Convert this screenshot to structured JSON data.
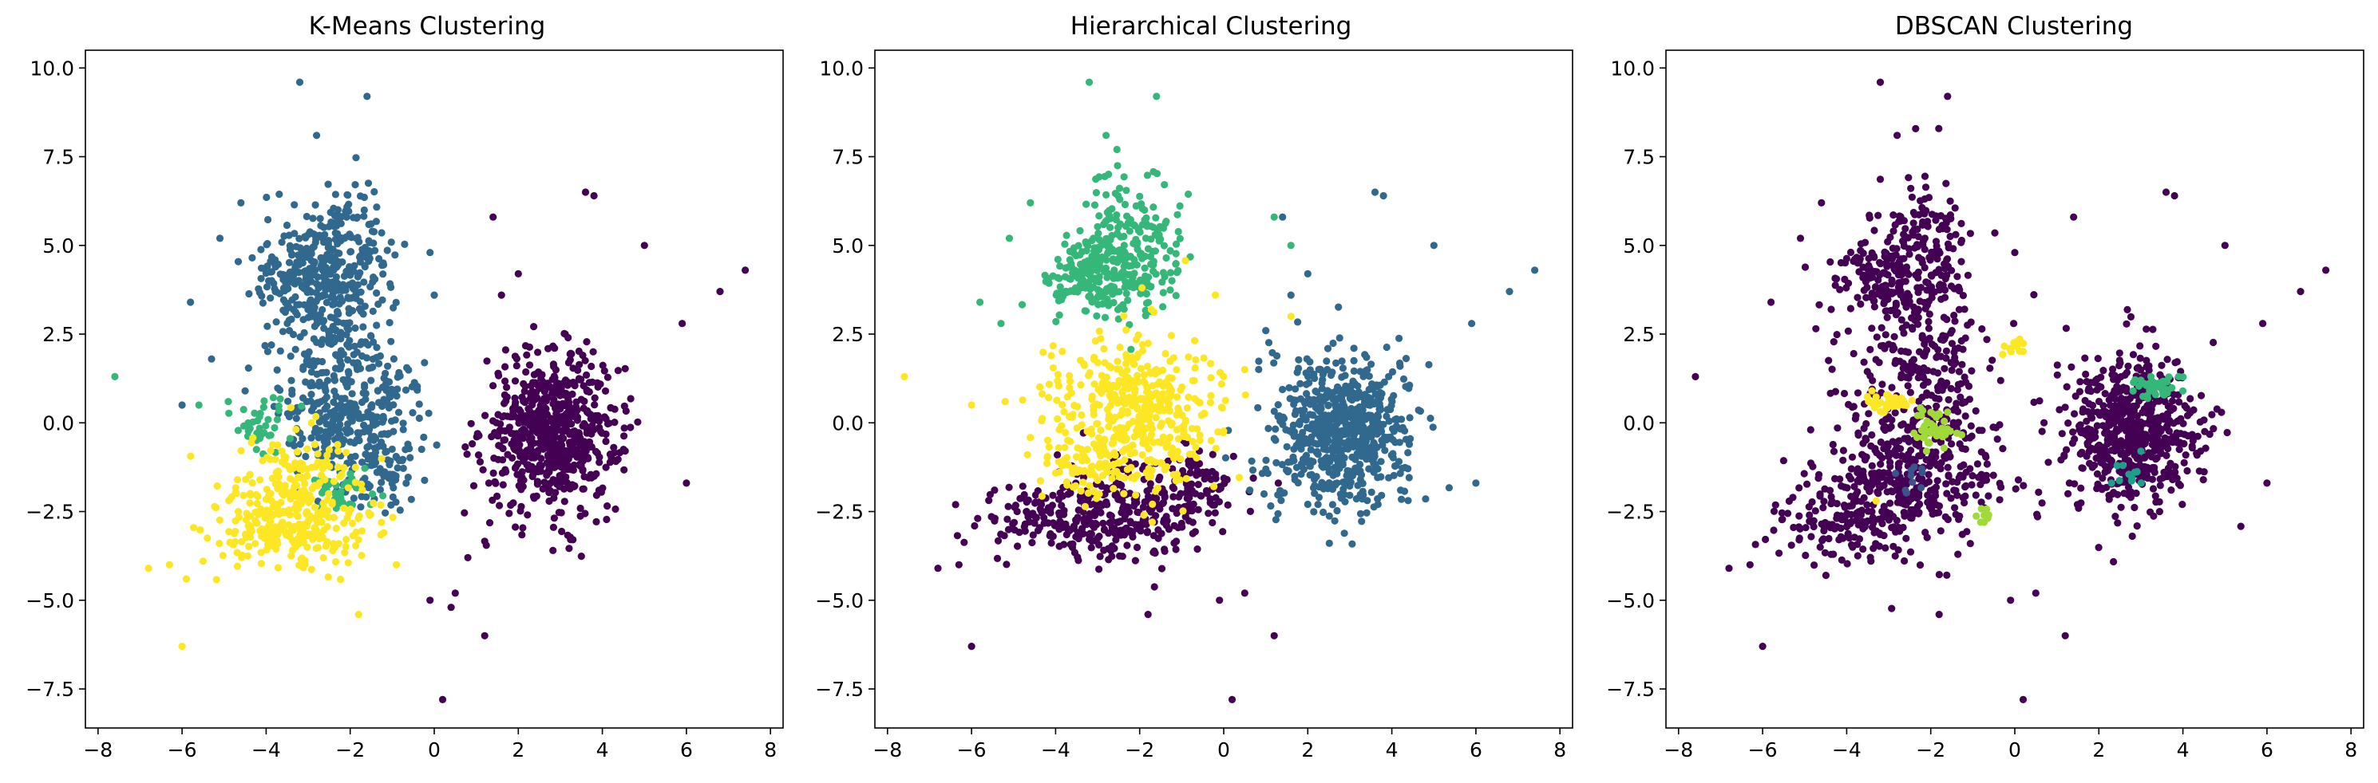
{
  "colors": {
    "viridis_0": "#440154",
    "viridis_1": "#31688e",
    "viridis_2": "#35b779",
    "viridis_3": "#fde725",
    "viridis_lime": "#a0da39",
    "viridis_teal": "#1f9e89",
    "viridis_mid": "#3b528b"
  },
  "chart_data": [
    {
      "type": "scatter",
      "title": "K-Means Clustering",
      "xlabel": "",
      "ylabel": "",
      "xlim": [
        -8.3,
        8.3
      ],
      "ylim": [
        -8.6,
        10.5
      ],
      "xticks": [
        -8,
        -6,
        -4,
        -2,
        0,
        2,
        4,
        6,
        8
      ],
      "yticks": [
        -7.5,
        -5.0,
        -2.5,
        0.0,
        2.5,
        5.0,
        7.5,
        10.0
      ],
      "grid": false,
      "series": [
        {
          "color": "#440154",
          "blobs": [
            {
              "cx": 2.8,
              "cy": -0.3,
              "sx": 0.8,
              "sy": 1.1,
              "n": 650
            }
          ],
          "points": [
            [
              5.0,
              5.0
            ],
            [
              3.8,
              6.4
            ],
            [
              3.6,
              6.5
            ],
            [
              7.4,
              4.3
            ],
            [
              6.8,
              3.7
            ],
            [
              5.9,
              2.8
            ],
            [
              6.0,
              -1.7
            ],
            [
              1.4,
              5.8
            ],
            [
              2.0,
              4.2
            ],
            [
              1.2,
              -6.0
            ],
            [
              0.2,
              -7.8
            ],
            [
              0.4,
              -5.2
            ],
            [
              0.8,
              -3.8
            ],
            [
              1.3,
              -1.7
            ],
            [
              -0.1,
              -5.0
            ],
            [
              0.5,
              -4.8
            ],
            [
              1.6,
              3.6
            ]
          ]
        },
        {
          "color": "#31688e",
          "blobs": [
            {
              "cx": -2.2,
              "cy": 4.8,
              "sx": 0.6,
              "sy": 1.0,
              "n": 230
            },
            {
              "cx": -3.3,
              "cy": 4.1,
              "sx": 0.5,
              "sy": 0.5,
              "n": 120
            },
            {
              "cx": -2.3,
              "cy": 2.2,
              "sx": 0.8,
              "sy": 1.1,
              "n": 200
            },
            {
              "cx": -2.0,
              "cy": 0.2,
              "sx": 0.9,
              "sy": 0.8,
              "n": 230
            },
            {
              "cx": -1.2,
              "cy": -1.5,
              "sx": 0.5,
              "sy": 0.6,
              "n": 70
            }
          ],
          "points": [
            [
              -3.2,
              9.6
            ],
            [
              -1.6,
              9.2
            ],
            [
              -2.8,
              8.1
            ],
            [
              -4.6,
              6.2
            ],
            [
              -5.1,
              5.2
            ],
            [
              -5.8,
              3.4
            ],
            [
              -6.0,
              0.5
            ],
            [
              -0.1,
              4.8
            ],
            [
              0.0,
              3.6
            ],
            [
              -4.5,
              0.9
            ],
            [
              -5.3,
              1.8
            ]
          ]
        },
        {
          "color": "#35b779",
          "blobs": [
            {
              "cx": -4.1,
              "cy": -0.1,
              "sx": 0.3,
              "sy": 0.4,
              "n": 40
            },
            {
              "cx": -2.2,
              "cy": -2.0,
              "sx": 0.4,
              "sy": 0.3,
              "n": 35
            }
          ],
          "points": [
            [
              -7.6,
              1.3
            ],
            [
              -4.9,
              0.6
            ],
            [
              -5.6,
              0.5
            ]
          ]
        },
        {
          "color": "#fde725",
          "blobs": [
            {
              "cx": -3.5,
              "cy": -2.8,
              "sx": 0.9,
              "sy": 0.6,
              "n": 280
            },
            {
              "cx": -3.2,
              "cy": -1.2,
              "sx": 0.7,
              "sy": 0.5,
              "n": 80
            }
          ],
          "points": [
            [
              -6.0,
              -6.3
            ],
            [
              -1.8,
              -5.4
            ],
            [
              -6.8,
              -4.1
            ],
            [
              -6.3,
              -4.0
            ],
            [
              -5.9,
              -4.4
            ],
            [
              -5.5,
              -3.9
            ],
            [
              -0.9,
              -4.0
            ],
            [
              -1.2,
              -3.1
            ]
          ]
        }
      ]
    },
    {
      "type": "scatter",
      "title": "Hierarchical Clustering",
      "xlabel": "",
      "ylabel": "",
      "xlim": [
        -8.3,
        8.3
      ],
      "ylim": [
        -8.6,
        10.5
      ],
      "xticks": [
        -8,
        -6,
        -4,
        -2,
        0,
        2,
        4,
        6,
        8
      ],
      "yticks": [
        -7.5,
        -5.0,
        -2.5,
        0.0,
        2.5,
        5.0,
        7.5,
        10.0
      ],
      "grid": false,
      "series": [
        {
          "color": "#440154",
          "blobs": [
            {
              "cx": -2.4,
              "cy": -2.5,
              "sx": 0.9,
              "sy": 0.7,
              "n": 260
            },
            {
              "cx": -4.2,
              "cy": -2.6,
              "sx": 0.8,
              "sy": 0.5,
              "n": 120
            },
            {
              "cx": -0.6,
              "cy": -1.8,
              "sx": 0.6,
              "sy": 0.5,
              "n": 80
            }
          ],
          "points": [
            [
              0.2,
              -7.8
            ],
            [
              -6.0,
              -6.3
            ],
            [
              1.2,
              -6.0
            ],
            [
              -1.8,
              -5.4
            ],
            [
              -6.8,
              -4.1
            ],
            [
              -6.3,
              -4.0
            ],
            [
              -0.1,
              -5.0
            ],
            [
              0.5,
              -4.8
            ],
            [
              1.3,
              -1.7
            ]
          ]
        },
        {
          "color": "#31688e",
          "blobs": [
            {
              "cx": 2.8,
              "cy": -0.3,
              "sx": 0.8,
              "sy": 1.1,
              "n": 650
            }
          ],
          "points": [
            [
              5.0,
              5.0
            ],
            [
              3.8,
              6.4
            ],
            [
              3.6,
              6.5
            ],
            [
              7.4,
              4.3
            ],
            [
              6.8,
              3.7
            ],
            [
              5.9,
              2.8
            ],
            [
              6.0,
              -1.7
            ],
            [
              1.4,
              5.8
            ],
            [
              2.0,
              4.2
            ],
            [
              1.6,
              3.6
            ],
            [
              1.0,
              2.6
            ]
          ]
        },
        {
          "color": "#35b779",
          "blobs": [
            {
              "cx": -2.2,
              "cy": 4.8,
              "sx": 0.6,
              "sy": 1.0,
              "n": 230
            },
            {
              "cx": -3.3,
              "cy": 4.1,
              "sx": 0.5,
              "sy": 0.5,
              "n": 130
            }
          ],
          "points": [
            [
              -3.2,
              9.6
            ],
            [
              -1.6,
              9.2
            ],
            [
              -2.8,
              8.1
            ],
            [
              -4.6,
              6.2
            ],
            [
              -5.1,
              5.2
            ],
            [
              -5.8,
              3.4
            ],
            [
              -5.3,
              2.8
            ],
            [
              1.6,
              5.0
            ],
            [
              1.2,
              5.8
            ]
          ]
        },
        {
          "color": "#fde725",
          "blobs": [
            {
              "cx": -2.2,
              "cy": 0.4,
              "sx": 1.0,
              "sy": 1.0,
              "n": 450
            },
            {
              "cx": -3.3,
              "cy": -1.3,
              "sx": 0.5,
              "sy": 0.4,
              "n": 60
            }
          ],
          "points": [
            [
              -7.6,
              1.3
            ],
            [
              -6.0,
              0.5
            ],
            [
              -5.2,
              0.6
            ],
            [
              -0.2,
              3.6
            ],
            [
              0.5,
              1.5
            ],
            [
              -1.7,
              -2.8
            ],
            [
              -1.9,
              -2.6
            ],
            [
              1.6,
              3.0
            ]
          ]
        }
      ]
    },
    {
      "type": "scatter",
      "title": "DBSCAN Clustering",
      "xlabel": "",
      "ylabel": "",
      "xlim": [
        -8.3,
        8.3
      ],
      "ylim": [
        -8.6,
        10.5
      ],
      "xticks": [
        -8,
        -6,
        -4,
        -2,
        0,
        2,
        4,
        6,
        8
      ],
      "yticks": [
        -7.5,
        -5.0,
        -2.5,
        0.0,
        2.5,
        5.0,
        7.5,
        10.0
      ],
      "grid": false,
      "series": [
        {
          "color": "#440154",
          "blobs": [
            {
              "cx": 2.8,
              "cy": -0.3,
              "sx": 0.8,
              "sy": 1.1,
              "n": 600
            },
            {
              "cx": -2.2,
              "cy": 4.6,
              "sx": 0.6,
              "sy": 1.1,
              "n": 200
            },
            {
              "cx": -3.3,
              "cy": 4.1,
              "sx": 0.5,
              "sy": 0.5,
              "n": 100
            },
            {
              "cx": -2.3,
              "cy": 1.5,
              "sx": 0.9,
              "sy": 1.3,
              "n": 250
            },
            {
              "cx": -2.5,
              "cy": -1.5,
              "sx": 1.1,
              "sy": 1.0,
              "n": 350
            },
            {
              "cx": -4.0,
              "cy": -2.8,
              "sx": 0.9,
              "sy": 0.6,
              "n": 150
            }
          ],
          "points": [
            [
              -3.2,
              9.6
            ],
            [
              -1.6,
              9.2
            ],
            [
              -2.8,
              8.1
            ],
            [
              -4.6,
              6.2
            ],
            [
              -5.1,
              5.2
            ],
            [
              -5.8,
              3.4
            ],
            [
              -7.6,
              1.3
            ],
            [
              0.0,
              4.8
            ],
            [
              0.2,
              -7.8
            ],
            [
              -6.0,
              -6.3
            ],
            [
              1.2,
              -6.0
            ],
            [
              -1.8,
              -5.4
            ],
            [
              -6.8,
              -4.1
            ],
            [
              -6.3,
              -4.0
            ],
            [
              5.0,
              5.0
            ],
            [
              3.8,
              6.4
            ],
            [
              3.6,
              6.5
            ],
            [
              7.4,
              4.3
            ],
            [
              6.8,
              3.7
            ],
            [
              5.9,
              2.8
            ],
            [
              6.0,
              -1.7
            ],
            [
              1.4,
              5.8
            ],
            [
              -0.1,
              -5.0
            ],
            [
              0.5,
              -4.8
            ],
            [
              1.3,
              -1.7
            ]
          ]
        },
        {
          "color": "#3b528b",
          "blobs": [
            {
              "cx": -2.4,
              "cy": -1.6,
              "sx": 0.2,
              "sy": 0.2,
              "n": 8
            }
          ],
          "points": [
            [
              -2.2,
              -1.4
            ],
            [
              -2.6,
              -1.9
            ]
          ]
        },
        {
          "color": "#1f9e89",
          "blobs": [
            {
              "cx": 2.7,
              "cy": -1.4,
              "sx": 0.2,
              "sy": 0.2,
              "n": 10
            }
          ],
          "points": [
            [
              3.0,
              -0.8
            ],
            [
              2.3,
              -1.7
            ]
          ]
        },
        {
          "color": "#35b779",
          "blobs": [
            {
              "cx": 3.4,
              "cy": 1.0,
              "sx": 0.3,
              "sy": 0.2,
              "n": 40
            }
          ],
          "points": [
            [
              3.9,
              1.3
            ],
            [
              3.0,
              1.2
            ]
          ]
        },
        {
          "color": "#a0da39",
          "blobs": [
            {
              "cx": -1.9,
              "cy": -0.2,
              "sx": 0.25,
              "sy": 0.3,
              "n": 40
            },
            {
              "cx": -0.7,
              "cy": -2.6,
              "sx": 0.1,
              "sy": 0.1,
              "n": 8
            }
          ],
          "points": [
            [
              -1.6,
              0.3
            ],
            [
              -2.1,
              -0.8
            ]
          ]
        },
        {
          "color": "#fde725",
          "blobs": [
            {
              "cx": -3.0,
              "cy": 0.6,
              "sx": 0.3,
              "sy": 0.15,
              "n": 30
            },
            {
              "cx": 0.0,
              "cy": 2.1,
              "sx": 0.15,
              "sy": 0.12,
              "n": 12
            }
          ],
          "points": [
            [
              -3.4,
              0.9
            ],
            [
              -2.6,
              0.5
            ],
            [
              -3.3,
              -2.2
            ]
          ]
        }
      ]
    }
  ]
}
